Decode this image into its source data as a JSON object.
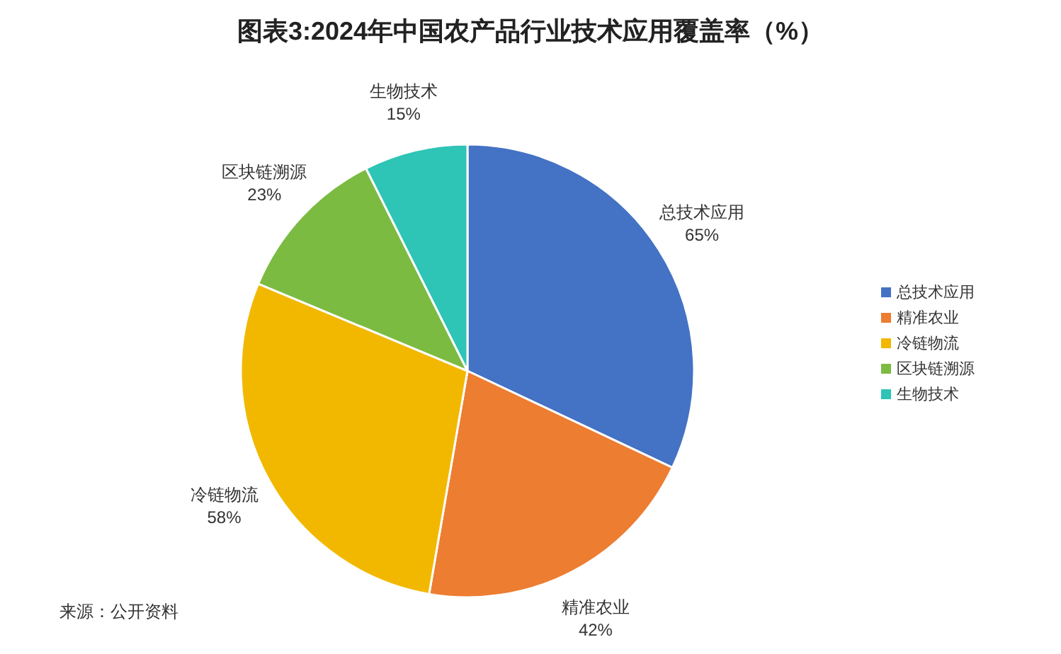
{
  "chart_data": {
    "type": "pie",
    "title": "图表3:2024年中国农产品行业技术应用覆盖率（%）",
    "categories": [
      "总技术应用",
      "精准农业",
      "冷链物流",
      "区块链溯源",
      "生物技术"
    ],
    "values": [
      65,
      42,
      58,
      23,
      15
    ],
    "colors": [
      "#4472c4",
      "#ed7d31",
      "#f2b800",
      "#7cbb42",
      "#2ec4b6"
    ],
    "value_labels": [
      "65%",
      "42%",
      "58%",
      "23%",
      "15%"
    ],
    "legend": "right",
    "annotations": [
      "来源：公开资料"
    ]
  }
}
